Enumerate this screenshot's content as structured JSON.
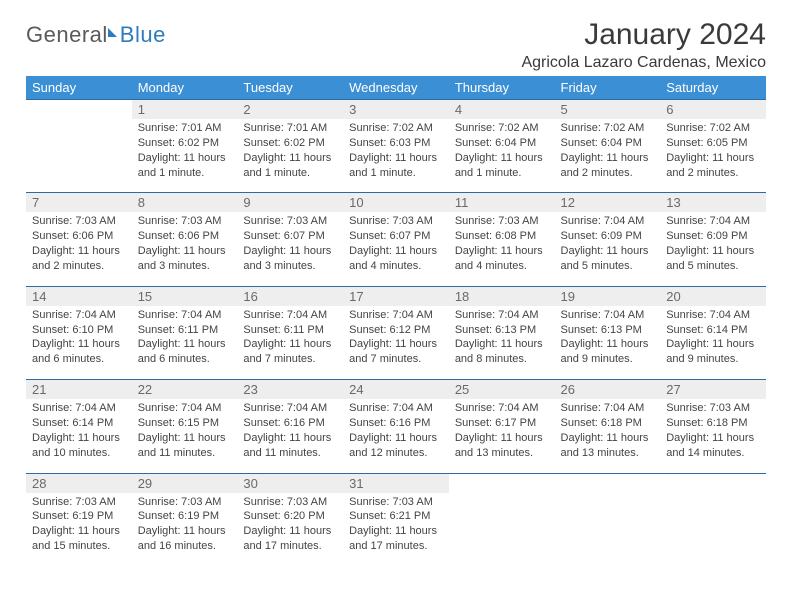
{
  "logo": {
    "part1": "General",
    "part2": "Blue"
  },
  "header": {
    "title": "January 2024",
    "location": "Agricola Lazaro Cardenas, Mexico"
  },
  "colors": {
    "header_bg": "#3b8fd4",
    "header_text": "#ffffff",
    "rule": "#2f6aa3",
    "daynum_bg": "#eeeeee",
    "daynum_text": "#6a6a6a",
    "logo_accent": "#2f7bbf",
    "body_text": "#444444"
  },
  "dow": [
    "Sunday",
    "Monday",
    "Tuesday",
    "Wednesday",
    "Thursday",
    "Friday",
    "Saturday"
  ],
  "weeks": [
    [
      null,
      {
        "n": "1",
        "sr": "Sunrise: 7:01 AM",
        "ss": "Sunset: 6:02 PM",
        "d1": "Daylight: 11 hours",
        "d2": "and 1 minute."
      },
      {
        "n": "2",
        "sr": "Sunrise: 7:01 AM",
        "ss": "Sunset: 6:02 PM",
        "d1": "Daylight: 11 hours",
        "d2": "and 1 minute."
      },
      {
        "n": "3",
        "sr": "Sunrise: 7:02 AM",
        "ss": "Sunset: 6:03 PM",
        "d1": "Daylight: 11 hours",
        "d2": "and 1 minute."
      },
      {
        "n": "4",
        "sr": "Sunrise: 7:02 AM",
        "ss": "Sunset: 6:04 PM",
        "d1": "Daylight: 11 hours",
        "d2": "and 1 minute."
      },
      {
        "n": "5",
        "sr": "Sunrise: 7:02 AM",
        "ss": "Sunset: 6:04 PM",
        "d1": "Daylight: 11 hours",
        "d2": "and 2 minutes."
      },
      {
        "n": "6",
        "sr": "Sunrise: 7:02 AM",
        "ss": "Sunset: 6:05 PM",
        "d1": "Daylight: 11 hours",
        "d2": "and 2 minutes."
      }
    ],
    [
      {
        "n": "7",
        "sr": "Sunrise: 7:03 AM",
        "ss": "Sunset: 6:06 PM",
        "d1": "Daylight: 11 hours",
        "d2": "and 2 minutes."
      },
      {
        "n": "8",
        "sr": "Sunrise: 7:03 AM",
        "ss": "Sunset: 6:06 PM",
        "d1": "Daylight: 11 hours",
        "d2": "and 3 minutes."
      },
      {
        "n": "9",
        "sr": "Sunrise: 7:03 AM",
        "ss": "Sunset: 6:07 PM",
        "d1": "Daylight: 11 hours",
        "d2": "and 3 minutes."
      },
      {
        "n": "10",
        "sr": "Sunrise: 7:03 AM",
        "ss": "Sunset: 6:07 PM",
        "d1": "Daylight: 11 hours",
        "d2": "and 4 minutes."
      },
      {
        "n": "11",
        "sr": "Sunrise: 7:03 AM",
        "ss": "Sunset: 6:08 PM",
        "d1": "Daylight: 11 hours",
        "d2": "and 4 minutes."
      },
      {
        "n": "12",
        "sr": "Sunrise: 7:04 AM",
        "ss": "Sunset: 6:09 PM",
        "d1": "Daylight: 11 hours",
        "d2": "and 5 minutes."
      },
      {
        "n": "13",
        "sr": "Sunrise: 7:04 AM",
        "ss": "Sunset: 6:09 PM",
        "d1": "Daylight: 11 hours",
        "d2": "and 5 minutes."
      }
    ],
    [
      {
        "n": "14",
        "sr": "Sunrise: 7:04 AM",
        "ss": "Sunset: 6:10 PM",
        "d1": "Daylight: 11 hours",
        "d2": "and 6 minutes."
      },
      {
        "n": "15",
        "sr": "Sunrise: 7:04 AM",
        "ss": "Sunset: 6:11 PM",
        "d1": "Daylight: 11 hours",
        "d2": "and 6 minutes."
      },
      {
        "n": "16",
        "sr": "Sunrise: 7:04 AM",
        "ss": "Sunset: 6:11 PM",
        "d1": "Daylight: 11 hours",
        "d2": "and 7 minutes."
      },
      {
        "n": "17",
        "sr": "Sunrise: 7:04 AM",
        "ss": "Sunset: 6:12 PM",
        "d1": "Daylight: 11 hours",
        "d2": "and 7 minutes."
      },
      {
        "n": "18",
        "sr": "Sunrise: 7:04 AM",
        "ss": "Sunset: 6:13 PM",
        "d1": "Daylight: 11 hours",
        "d2": "and 8 minutes."
      },
      {
        "n": "19",
        "sr": "Sunrise: 7:04 AM",
        "ss": "Sunset: 6:13 PM",
        "d1": "Daylight: 11 hours",
        "d2": "and 9 minutes."
      },
      {
        "n": "20",
        "sr": "Sunrise: 7:04 AM",
        "ss": "Sunset: 6:14 PM",
        "d1": "Daylight: 11 hours",
        "d2": "and 9 minutes."
      }
    ],
    [
      {
        "n": "21",
        "sr": "Sunrise: 7:04 AM",
        "ss": "Sunset: 6:14 PM",
        "d1": "Daylight: 11 hours",
        "d2": "and 10 minutes."
      },
      {
        "n": "22",
        "sr": "Sunrise: 7:04 AM",
        "ss": "Sunset: 6:15 PM",
        "d1": "Daylight: 11 hours",
        "d2": "and 11 minutes."
      },
      {
        "n": "23",
        "sr": "Sunrise: 7:04 AM",
        "ss": "Sunset: 6:16 PM",
        "d1": "Daylight: 11 hours",
        "d2": "and 11 minutes."
      },
      {
        "n": "24",
        "sr": "Sunrise: 7:04 AM",
        "ss": "Sunset: 6:16 PM",
        "d1": "Daylight: 11 hours",
        "d2": "and 12 minutes."
      },
      {
        "n": "25",
        "sr": "Sunrise: 7:04 AM",
        "ss": "Sunset: 6:17 PM",
        "d1": "Daylight: 11 hours",
        "d2": "and 13 minutes."
      },
      {
        "n": "26",
        "sr": "Sunrise: 7:04 AM",
        "ss": "Sunset: 6:18 PM",
        "d1": "Daylight: 11 hours",
        "d2": "and 13 minutes."
      },
      {
        "n": "27",
        "sr": "Sunrise: 7:03 AM",
        "ss": "Sunset: 6:18 PM",
        "d1": "Daylight: 11 hours",
        "d2": "and 14 minutes."
      }
    ],
    [
      {
        "n": "28",
        "sr": "Sunrise: 7:03 AM",
        "ss": "Sunset: 6:19 PM",
        "d1": "Daylight: 11 hours",
        "d2": "and 15 minutes."
      },
      {
        "n": "29",
        "sr": "Sunrise: 7:03 AM",
        "ss": "Sunset: 6:19 PM",
        "d1": "Daylight: 11 hours",
        "d2": "and 16 minutes."
      },
      {
        "n": "30",
        "sr": "Sunrise: 7:03 AM",
        "ss": "Sunset: 6:20 PM",
        "d1": "Daylight: 11 hours",
        "d2": "and 17 minutes."
      },
      {
        "n": "31",
        "sr": "Sunrise: 7:03 AM",
        "ss": "Sunset: 6:21 PM",
        "d1": "Daylight: 11 hours",
        "d2": "and 17 minutes."
      },
      null,
      null,
      null
    ]
  ]
}
